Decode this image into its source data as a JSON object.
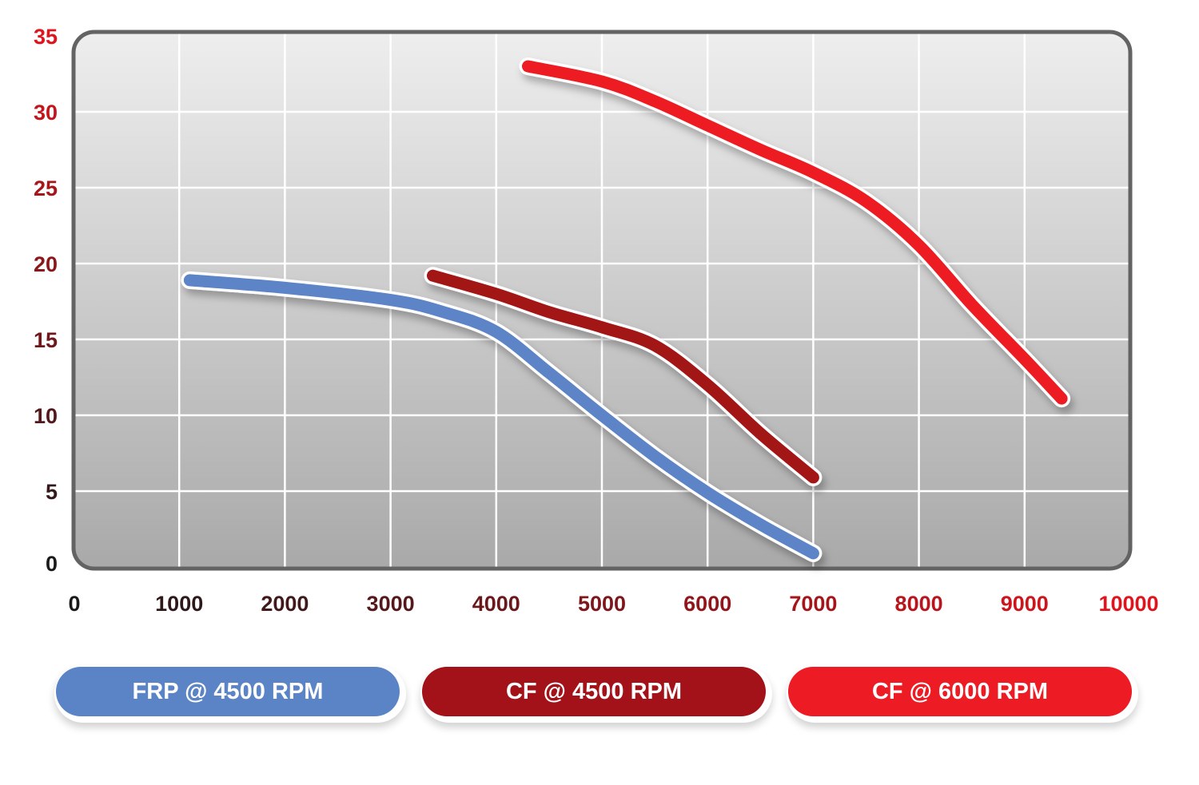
{
  "chart_data": {
    "type": "line",
    "title": "",
    "xlabel": "",
    "ylabel": "",
    "xlim": [
      0,
      10000
    ],
    "ylim": [
      0,
      35
    ],
    "x_ticks": [
      "0",
      "1000",
      "2000",
      "3000",
      "4000",
      "5000",
      "6000",
      "7000",
      "8000",
      "9000",
      "10000"
    ],
    "y_ticks": [
      "0",
      "5",
      "10",
      "15",
      "20",
      "25",
      "30",
      "35"
    ],
    "grid": true,
    "legend_position": "bottom",
    "series": [
      {
        "name": "FRP @ 4500 RPM",
        "color": "#5b84c6",
        "x": [
          1100,
          2000,
          3000,
          3500,
          4000,
          4500,
          5000,
          5500,
          6000,
          6500,
          7000
        ],
        "y": [
          18.9,
          18.4,
          17.6,
          16.8,
          15.5,
          12.8,
          10.0,
          7.3,
          4.9,
          2.8,
          0.9
        ]
      },
      {
        "name": "CF @ 4500 RPM",
        "color": "#a31219",
        "x": [
          3400,
          4000,
          4500,
          5000,
          5500,
          6000,
          6500,
          7000
        ],
        "y": [
          19.2,
          18.0,
          16.8,
          15.8,
          14.6,
          12.0,
          8.8,
          5.9
        ]
      },
      {
        "name": "CF @ 6000 RPM",
        "color": "#ed1c24",
        "x": [
          4300,
          5000,
          5500,
          6000,
          6500,
          7000,
          7500,
          8000,
          8500,
          9000,
          9350
        ],
        "y": [
          33.0,
          32.0,
          30.7,
          29.1,
          27.5,
          26.0,
          24.1,
          21.2,
          17.3,
          13.7,
          11.1
        ]
      }
    ]
  },
  "legend": [
    {
      "label": "FRP @ 4500 RPM",
      "color": "#5b84c6"
    },
    {
      "label": "CF @ 4500 RPM",
      "color": "#a31219"
    },
    {
      "label": "CF @ 6000 RPM",
      "color": "#ed1c24"
    }
  ]
}
